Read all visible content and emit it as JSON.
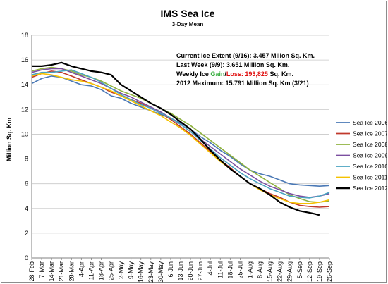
{
  "chart_data": {
    "type": "line",
    "title": "IMS Sea Ice",
    "subtitle": "3-Day Mean",
    "ylabel": "Million Sq. Km",
    "xlabel": "",
    "ylim": [
      0,
      18
    ],
    "yticks": [
      0,
      2,
      4,
      6,
      8,
      10,
      12,
      14,
      16,
      18
    ],
    "x_tick_labels": [
      "28-Feb",
      "7-Mar",
      "14-Mar",
      "21-Mar",
      "28-Mar",
      "4-Apr",
      "11-Apr",
      "18-Apr",
      "25-Apr",
      "2-May",
      "9-May",
      "16-May",
      "23-May",
      "30-May",
      "6-Jun",
      "13-Jun",
      "20-Jun",
      "27-Jun",
      "4-Jul",
      "11-Jul",
      "18-Jul",
      "25-Jul",
      "1-Aug",
      "8-Aug",
      "15-Aug",
      "22-Aug",
      "29-Aug",
      "5-Sep",
      "12-Sep",
      "19-Sep",
      "26-Sep"
    ],
    "grid": "horizontal",
    "legend_position": "right",
    "annotations": {
      "line1": "Current Ice Extent (9/16): 3.457 Millon Sq. Km.",
      "line2": "Last Week (9/9): 3.651 Million Sq. Km.",
      "line3_prefix": "Weekly Ice ",
      "line3_gain": "Gain",
      "line3_slash": "/",
      "line3_loss": "Loss: 193,825",
      "line3_suffix": " Sq. Km.",
      "line4": "2012 Maximum: 15.791 Million Sq. Km (3/21)",
      "gain_color": "#3cb043",
      "loss_color": "#e01010"
    },
    "x_unit": "day index from 28-Feb",
    "series": [
      {
        "name": "Sea Ice 2006",
        "color": "#4a78b5",
        "points": [
          [
            0,
            14.1
          ],
          [
            7,
            14.5
          ],
          [
            14,
            14.7
          ],
          [
            21,
            14.6
          ],
          [
            28,
            14.3
          ],
          [
            35,
            14.0
          ],
          [
            42,
            13.9
          ],
          [
            49,
            13.6
          ],
          [
            56,
            13.1
          ],
          [
            63,
            12.9
          ],
          [
            70,
            12.5
          ],
          [
            77,
            12.2
          ],
          [
            84,
            11.9
          ],
          [
            91,
            11.6
          ],
          [
            98,
            11.3
          ],
          [
            105,
            10.9
          ],
          [
            112,
            10.4
          ],
          [
            119,
            9.8
          ],
          [
            126,
            9.3
          ],
          [
            133,
            8.7
          ],
          [
            140,
            8.2
          ],
          [
            147,
            7.6
          ],
          [
            154,
            7.1
          ],
          [
            161,
            6.8
          ],
          [
            168,
            6.6
          ],
          [
            175,
            6.3
          ],
          [
            182,
            6.0
          ],
          [
            189,
            5.9
          ],
          [
            196,
            5.85
          ],
          [
            203,
            5.8
          ],
          [
            210,
            5.85
          ]
        ]
      },
      {
        "name": "Sea Ice 2007",
        "color": "#c0392b",
        "points": [
          [
            0,
            14.6
          ],
          [
            7,
            14.9
          ],
          [
            14,
            15.1
          ],
          [
            21,
            15.0
          ],
          [
            28,
            14.7
          ],
          [
            35,
            14.4
          ],
          [
            42,
            14.1
          ],
          [
            49,
            13.8
          ],
          [
            56,
            13.4
          ],
          [
            63,
            13.1
          ],
          [
            70,
            12.8
          ],
          [
            77,
            12.5
          ],
          [
            84,
            12.1
          ],
          [
            91,
            11.7
          ],
          [
            98,
            11.2
          ],
          [
            105,
            10.6
          ],
          [
            112,
            10.0
          ],
          [
            119,
            9.3
          ],
          [
            126,
            8.6
          ],
          [
            133,
            7.9
          ],
          [
            140,
            7.3
          ],
          [
            147,
            6.6
          ],
          [
            154,
            6.0
          ],
          [
            161,
            5.6
          ],
          [
            168,
            5.2
          ],
          [
            175,
            4.9
          ],
          [
            182,
            4.5
          ],
          [
            189,
            4.25
          ],
          [
            196,
            4.15
          ],
          [
            203,
            4.1
          ],
          [
            210,
            4.15
          ]
        ]
      },
      {
        "name": "Sea Ice 2008",
        "color": "#8fb23f",
        "points": [
          [
            0,
            15.1
          ],
          [
            7,
            15.3
          ],
          [
            14,
            15.4
          ],
          [
            21,
            15.3
          ],
          [
            28,
            15.1
          ],
          [
            35,
            14.8
          ],
          [
            42,
            14.6
          ],
          [
            49,
            14.3
          ],
          [
            56,
            13.9
          ],
          [
            63,
            13.5
          ],
          [
            70,
            13.2
          ],
          [
            77,
            12.9
          ],
          [
            84,
            12.5
          ],
          [
            91,
            12.1
          ],
          [
            98,
            11.7
          ],
          [
            105,
            11.2
          ],
          [
            112,
            10.7
          ],
          [
            119,
            10.1
          ],
          [
            126,
            9.5
          ],
          [
            133,
            8.9
          ],
          [
            140,
            8.3
          ],
          [
            147,
            7.7
          ],
          [
            154,
            7.1
          ],
          [
            161,
            6.6
          ],
          [
            168,
            6.1
          ],
          [
            175,
            5.6
          ],
          [
            182,
            5.1
          ],
          [
            189,
            4.8
          ],
          [
            196,
            4.55
          ],
          [
            203,
            4.5
          ],
          [
            210,
            4.6
          ]
        ]
      },
      {
        "name": "Sea Ice 2009",
        "color": "#7b4fa0",
        "points": [
          [
            0,
            15.0
          ],
          [
            7,
            15.2
          ],
          [
            14,
            15.3
          ],
          [
            21,
            15.3
          ],
          [
            28,
            15.0
          ],
          [
            35,
            14.7
          ],
          [
            42,
            14.4
          ],
          [
            49,
            14.1
          ],
          [
            56,
            13.7
          ],
          [
            63,
            13.3
          ],
          [
            70,
            13.0
          ],
          [
            77,
            12.6
          ],
          [
            84,
            12.2
          ],
          [
            91,
            11.8
          ],
          [
            98,
            11.3
          ],
          [
            105,
            10.8
          ],
          [
            112,
            10.2
          ],
          [
            119,
            9.6
          ],
          [
            126,
            9.0
          ],
          [
            133,
            8.4
          ],
          [
            140,
            7.8
          ],
          [
            147,
            7.2
          ],
          [
            154,
            6.7
          ],
          [
            161,
            6.2
          ],
          [
            168,
            5.8
          ],
          [
            175,
            5.5
          ],
          [
            182,
            5.2
          ],
          [
            189,
            5.0
          ],
          [
            196,
            4.9
          ],
          [
            203,
            5.0
          ],
          [
            210,
            5.2
          ]
        ]
      },
      {
        "name": "Sea Ice 2010",
        "color": "#4aa3c0",
        "points": [
          [
            0,
            14.8
          ],
          [
            7,
            15.0
          ],
          [
            14,
            15.0
          ],
          [
            21,
            15.1
          ],
          [
            28,
            15.2
          ],
          [
            35,
            14.9
          ],
          [
            42,
            14.6
          ],
          [
            49,
            14.2
          ],
          [
            56,
            13.7
          ],
          [
            63,
            13.2
          ],
          [
            70,
            12.8
          ],
          [
            77,
            12.4
          ],
          [
            84,
            12.1
          ],
          [
            91,
            11.7
          ],
          [
            98,
            11.3
          ],
          [
            105,
            10.8
          ],
          [
            112,
            10.2
          ],
          [
            119,
            9.5
          ],
          [
            126,
            8.8
          ],
          [
            133,
            8.1
          ],
          [
            140,
            7.5
          ],
          [
            147,
            6.9
          ],
          [
            154,
            6.4
          ],
          [
            161,
            6.0
          ],
          [
            168,
            5.6
          ],
          [
            175,
            5.3
          ],
          [
            182,
            5.0
          ],
          [
            189,
            4.9
          ],
          [
            196,
            4.85
          ],
          [
            203,
            5.0
          ],
          [
            210,
            5.3
          ]
        ]
      },
      {
        "name": "Sea Ice 2011",
        "color": "#f5c200",
        "points": [
          [
            0,
            14.7
          ],
          [
            7,
            14.9
          ],
          [
            14,
            14.8
          ],
          [
            21,
            14.6
          ],
          [
            28,
            14.4
          ],
          [
            35,
            14.3
          ],
          [
            42,
            14.1
          ],
          [
            49,
            13.8
          ],
          [
            56,
            13.5
          ],
          [
            63,
            13.1
          ],
          [
            70,
            12.7
          ],
          [
            77,
            12.3
          ],
          [
            84,
            11.9
          ],
          [
            91,
            11.5
          ],
          [
            98,
            11.0
          ],
          [
            105,
            10.5
          ],
          [
            112,
            9.9
          ],
          [
            119,
            9.2
          ],
          [
            126,
            8.5
          ],
          [
            133,
            7.8
          ],
          [
            140,
            7.2
          ],
          [
            147,
            6.6
          ],
          [
            154,
            6.0
          ],
          [
            161,
            5.5
          ],
          [
            168,
            5.1
          ],
          [
            175,
            4.8
          ],
          [
            182,
            4.5
          ],
          [
            189,
            4.4
          ],
          [
            196,
            4.4
          ],
          [
            203,
            4.5
          ],
          [
            210,
            4.7
          ]
        ]
      },
      {
        "name": "Sea Ice 2012",
        "color": "#000000",
        "points": [
          [
            0,
            15.5
          ],
          [
            7,
            15.5
          ],
          [
            14,
            15.6
          ],
          [
            21,
            15.79
          ],
          [
            28,
            15.5
          ],
          [
            35,
            15.3
          ],
          [
            42,
            15.1
          ],
          [
            49,
            15.0
          ],
          [
            56,
            14.8
          ],
          [
            63,
            14.0
          ],
          [
            70,
            13.5
          ],
          [
            77,
            13.0
          ],
          [
            84,
            12.5
          ],
          [
            91,
            12.1
          ],
          [
            98,
            11.6
          ],
          [
            105,
            11.0
          ],
          [
            112,
            10.4
          ],
          [
            119,
            9.6
          ],
          [
            126,
            8.7
          ],
          [
            133,
            7.9
          ],
          [
            140,
            7.2
          ],
          [
            147,
            6.6
          ],
          [
            154,
            6.0
          ],
          [
            161,
            5.6
          ],
          [
            168,
            5.1
          ],
          [
            175,
            4.5
          ],
          [
            182,
            4.1
          ],
          [
            189,
            3.8
          ],
          [
            196,
            3.65
          ],
          [
            200,
            3.55
          ],
          [
            203,
            3.46
          ]
        ]
      }
    ]
  }
}
